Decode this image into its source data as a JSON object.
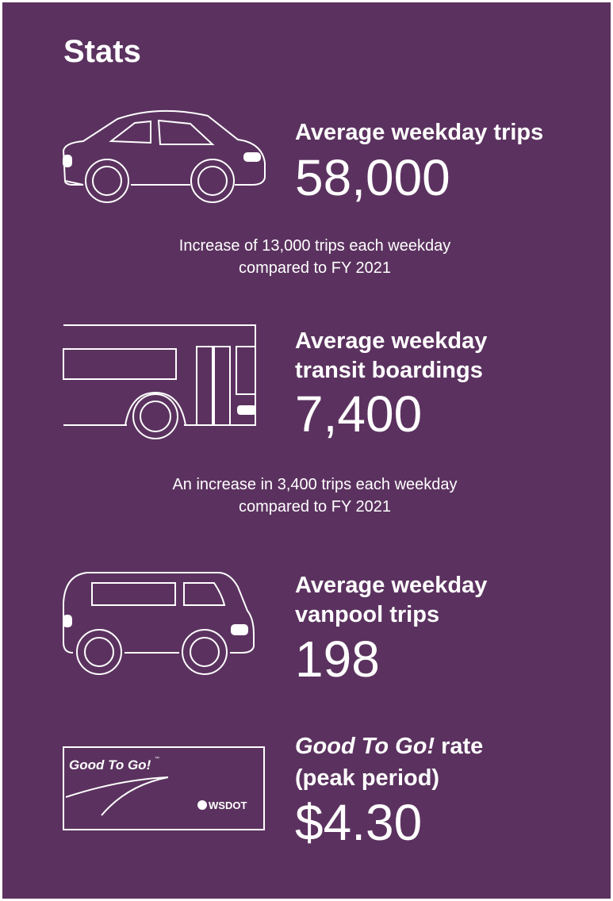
{
  "title": "Stats",
  "stats": [
    {
      "label": [
        "Average weekday trips"
      ],
      "value": "58,000",
      "note": [
        "Increase of 13,000 trips each weekday",
        "compared to FY 2021"
      ]
    },
    {
      "label": [
        "Average weekday",
        "transit boardings"
      ],
      "value": "7,400",
      "note": [
        "An increase in 3,400 trips each weekday",
        "compared to FY 2021"
      ]
    },
    {
      "label": [
        "Average weekday",
        "vanpool trips"
      ],
      "value": "198"
    },
    {
      "label_italic": "Good To Go!",
      "label": [
        "rate",
        "(peak period)"
      ],
      "value": "$4.30"
    }
  ],
  "card": {
    "brand": "Good To Go!",
    "trademark": "™",
    "agency": "WSDOT"
  }
}
